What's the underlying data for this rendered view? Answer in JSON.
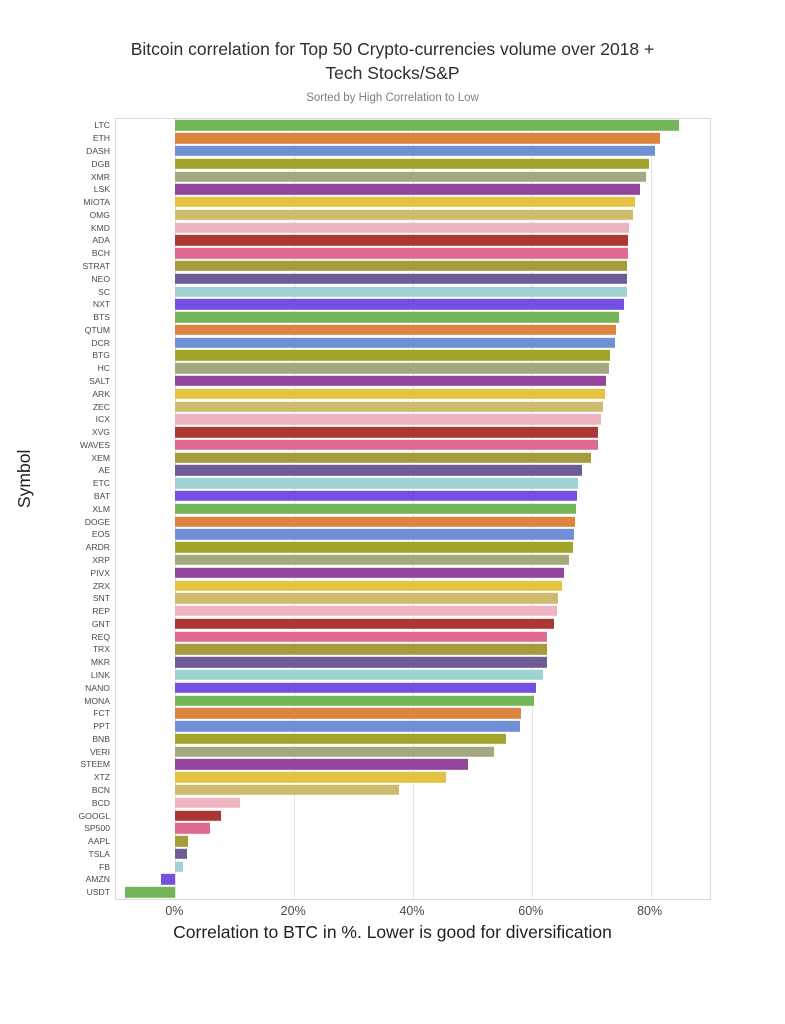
{
  "chart_data": {
    "type": "bar",
    "orientation": "horizontal",
    "title": "Bitcoin correlation for Top 50 Crypto-currencies volume over 2018 +\nTech Stocks/S&P",
    "subtitle": "Sorted by High Correlation to Low",
    "xlabel": "Correlation to BTC in %. Lower is good for diversification",
    "ylabel": "Symbol",
    "xlim": [
      -10,
      90
    ],
    "xticks": [
      0,
      20,
      40,
      60,
      80
    ],
    "xtick_labels": [
      "0%",
      "20%",
      "40%",
      "60%",
      "80%"
    ],
    "grid": true,
    "legend": "none",
    "sort_order": "high-to-low",
    "palette": [
      "#74b559",
      "#dd8441",
      "#6f90d5",
      "#a2a42c",
      "#a4a87e",
      "#93449b",
      "#e4c242",
      "#cfbb6e",
      "#efb3c2",
      "#ab3832",
      "#e16a92",
      "#a69b3a",
      "#6d5c95",
      "#9fd3d3",
      "#7450e0"
    ],
    "categories": [
      "LTC",
      "ETH",
      "DASH",
      "DGB",
      "XMR",
      "LSK",
      "MIOTA",
      "OMG",
      "KMD",
      "ADA",
      "BCH",
      "STRAT",
      "NEO",
      "SC",
      "NXT",
      "BTS",
      "QTUM",
      "DCR",
      "BTG",
      "HC",
      "SALT",
      "ARK",
      "ZEC",
      "ICX",
      "XVG",
      "WAVES",
      "XEM",
      "AE",
      "ETC",
      "BAT",
      "XLM",
      "DOGE",
      "EOS",
      "ARDR",
      "XRP",
      "PIVX",
      "ZRX",
      "SNT",
      "REP",
      "GNT",
      "REQ",
      "TRX",
      "MKR",
      "LINK",
      "NANO",
      "MONA",
      "FCT",
      "PPT",
      "BNB",
      "VERI",
      "STEEM",
      "XTZ",
      "BCN",
      "BCD",
      "GOOGL",
      "SP500",
      "AAPL",
      "TSLA",
      "FB",
      "AMZN",
      "USDT"
    ],
    "values": [
      84.7,
      81.5,
      80.7,
      79.7,
      79.2,
      78.2,
      77.3,
      77.0,
      76.3,
      76.2,
      76.2,
      76.1,
      76.0,
      76.0,
      75.6,
      74.6,
      74.2,
      74.0,
      73.1,
      73.0,
      72.5,
      72.4,
      72.0,
      71.6,
      71.2,
      71.1,
      70.0,
      68.5,
      67.8,
      67.6,
      67.4,
      67.3,
      67.1,
      67.0,
      66.3,
      65.5,
      65.1,
      64.4,
      64.2,
      63.8,
      62.6,
      62.5,
      62.5,
      61.9,
      60.7,
      60.3,
      58.1,
      58.0,
      55.7,
      53.6,
      49.2,
      45.5,
      37.7,
      10.9,
      7.7,
      5.9,
      2.2,
      1.9,
      1.2,
      -2.4,
      -8.5
    ]
  }
}
